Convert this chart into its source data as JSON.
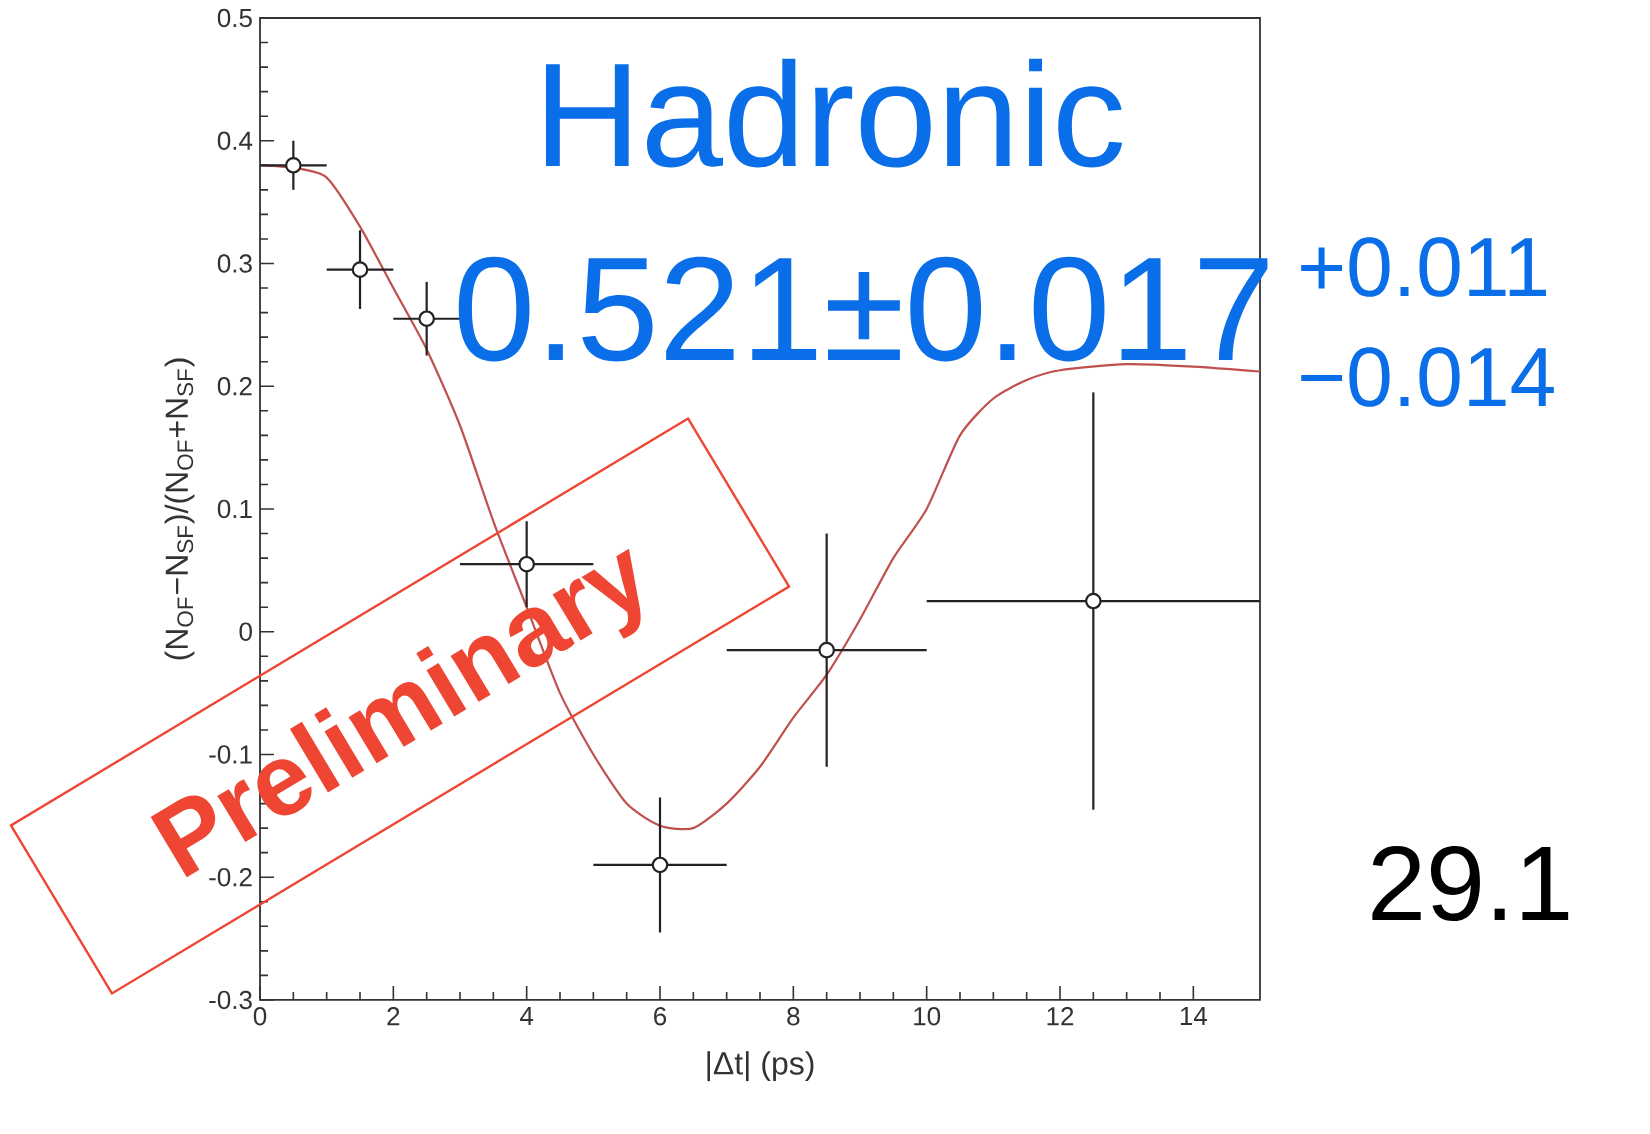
{
  "chart_data": {
    "type": "scatter",
    "xlabel": "|Δt| (ps)",
    "ylabel": "(N$_{OF}$−N$_{SF}$)/(N$_{OF}$+N$_{SF}$)",
    "annotations": [
      "Hadronic",
      "0.521±0.017",
      "+0.011",
      "−0.014",
      "Preliminary",
      "29.1"
    ],
    "xlim": [
      0,
      15
    ],
    "ylim": [
      -0.3,
      0.5
    ],
    "xticks": [
      0,
      2,
      4,
      6,
      8,
      10,
      12,
      14
    ],
    "yticks": [
      -0.3,
      -0.2,
      -0.1,
      0,
      0.1,
      0.2,
      0.3,
      0.4,
      0.5
    ],
    "series": [
      {
        "type": "line",
        "color": "#c0504d",
        "marker": "none",
        "line_style": "solid",
        "x": [
          0,
          0.5,
          1,
          1.5,
          2,
          2.5,
          3,
          3.5,
          4,
          4.5,
          5,
          5.5,
          6,
          6.5,
          7,
          7.5,
          8,
          8.5,
          9,
          9.5,
          10,
          10.5,
          11,
          11.5,
          12,
          13,
          14,
          15
        ],
        "values": [
          0.38,
          0.378,
          0.37,
          0.33,
          0.28,
          0.23,
          0.168,
          0.09,
          0.02,
          -0.05,
          -0.1,
          -0.14,
          -0.158,
          -0.16,
          -0.14,
          -0.11,
          -0.07,
          -0.035,
          0.01,
          0.06,
          0.1,
          0.16,
          0.19,
          0.205,
          0.213,
          0.218,
          0.216,
          0.212
        ]
      },
      {
        "color": "#222222",
        "marker": "circle",
        "x": [
          0.5,
          1.5,
          2.5,
          4,
          6,
          8.5,
          12.5
        ],
        "values": [
          0.38,
          0.295,
          0.255,
          0.055,
          -0.19,
          -0.015,
          0.025
        ],
        "errors": [
          0.02,
          0.032,
          0.03,
          0.035,
          0.055,
          0.095,
          0.17
        ],
        "xerrors": [
          [
            0,
            1
          ],
          [
            1,
            2
          ],
          [
            2,
            3
          ],
          [
            3,
            5
          ],
          [
            5,
            7
          ],
          [
            7,
            10
          ],
          [
            10,
            15
          ]
        ]
      }
    ]
  }
}
